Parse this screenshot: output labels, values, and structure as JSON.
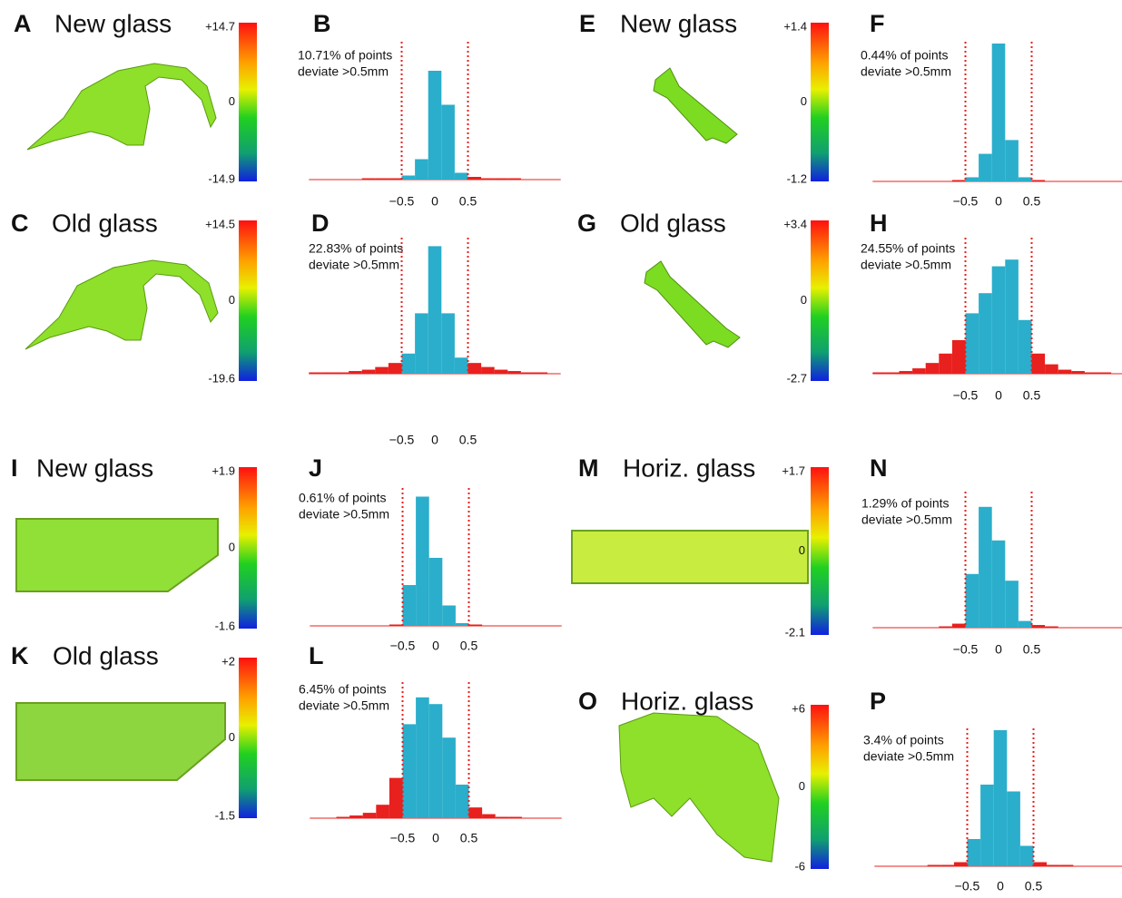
{
  "image_panels": [
    {
      "letter": "A",
      "title": "New glass",
      "scale": [
        "+14.7",
        "0",
        "-14.9"
      ]
    },
    {
      "letter": "C",
      "title": "Old glass",
      "scale": [
        "+14.5",
        "0",
        "-19.6"
      ]
    },
    {
      "letter": "E",
      "title": "New glass",
      "scale": [
        "+1.4",
        "0",
        "-1.2"
      ]
    },
    {
      "letter": "G",
      "title": "Old glass",
      "scale": [
        "+3.4",
        "0",
        "-2.7"
      ]
    },
    {
      "letter": "I",
      "title": "New glass",
      "scale": [
        "+1.9",
        "0",
        "-1.6"
      ]
    },
    {
      "letter": "K",
      "title": "Old glass",
      "scale": [
        "+2",
        "0",
        "-1.5"
      ]
    },
    {
      "letter": "M",
      "title": "Horiz. glass",
      "scale": [
        "+1.7",
        "0",
        "-2.1"
      ]
    },
    {
      "letter": "O",
      "title": "Horiz. glass",
      "scale": [
        "+6",
        "0",
        "-6"
      ]
    }
  ],
  "chart_data": [
    {
      "type": "histogram",
      "title": "B",
      "annotation": [
        "10.71% of points",
        "deviate >0.5mm"
      ],
      "color": "#2aaecb",
      "outlier_color": "#e8201e",
      "bins": [
        -1.9,
        -1.7,
        -1.5,
        -1.3,
        -1.1,
        -0.9,
        -0.7,
        -0.5,
        -0.3,
        -0.1,
        0.1,
        0.3,
        0.5,
        0.7,
        0.9,
        1.1,
        1.3,
        1.5,
        1.7,
        1.9
      ],
      "values": [
        0,
        0,
        0,
        0,
        1,
        1,
        1,
        3,
        15,
        80,
        55,
        5,
        2,
        1,
        1,
        1,
        0,
        0,
        0
      ],
      "xlim": [
        -1.9,
        1.9
      ],
      "ylim": [
        0,
        100
      ],
      "xticks": [
        {
          "value": -0.5,
          "label": "−0.5"
        },
        0,
        0.5
      ]
    },
    {
      "type": "histogram",
      "title": "D",
      "annotation": [
        "22.83% of points",
        "deviate >0.5mm"
      ],
      "color": "#2aaecb",
      "outlier_color": "#e8201e",
      "bins": [
        -1.9,
        -1.7,
        -1.5,
        -1.3,
        -1.1,
        -0.9,
        -0.7,
        -0.5,
        -0.3,
        -0.1,
        0.1,
        0.3,
        0.5,
        0.7,
        0.9,
        1.1,
        1.3,
        1.5,
        1.7,
        1.9
      ],
      "values": [
        1,
        1,
        1,
        2,
        3,
        5,
        8,
        15,
        45,
        95,
        45,
        12,
        8,
        5,
        3,
        2,
        1,
        1,
        0
      ],
      "xlim": [
        -1.9,
        1.9
      ],
      "ylim": [
        0,
        100
      ],
      "xticks": [
        {
          "value": -0.5,
          "label": "−0.5"
        },
        0,
        0.5
      ]
    },
    {
      "type": "histogram",
      "title": "F",
      "annotation": [
        "0.44% of points",
        "deviate >0.5mm"
      ],
      "color": "#2aaecb",
      "outlier_color": "#e8201e",
      "bins": [
        -1.9,
        -1.7,
        -1.5,
        -1.3,
        -1.1,
        -0.9,
        -0.7,
        -0.5,
        -0.3,
        -0.1,
        0.1,
        0.3,
        0.5,
        0.7,
        0.9,
        1.1,
        1.3,
        1.5,
        1.7,
        1.9
      ],
      "values": [
        0,
        0,
        0,
        0,
        0,
        0,
        1,
        3,
        20,
        100,
        30,
        3,
        1,
        0,
        0,
        0,
        0,
        0,
        0
      ],
      "xlim": [
        -1.9,
        1.9
      ],
      "ylim": [
        0,
        100
      ],
      "xticks": [
        {
          "value": -0.5,
          "label": "−0.5"
        },
        0,
        0.5
      ]
    },
    {
      "type": "histogram",
      "title": "H",
      "annotation": [
        "24.55% of points",
        "deviate >0.5mm"
      ],
      "color": "#2aaecb",
      "outlier_color": "#e8201e",
      "bins": [
        -1.9,
        -1.7,
        -1.5,
        -1.3,
        -1.1,
        -0.9,
        -0.7,
        -0.5,
        -0.3,
        -0.1,
        0.1,
        0.3,
        0.5,
        0.7,
        0.9,
        1.1,
        1.3,
        1.5,
        1.7,
        1.9
      ],
      "values": [
        1,
        1,
        2,
        4,
        8,
        15,
        25,
        45,
        60,
        80,
        85,
        40,
        15,
        7,
        3,
        2,
        1,
        1,
        0
      ],
      "xlim": [
        -1.9,
        1.9
      ],
      "ylim": [
        0,
        100
      ],
      "xticks": [
        {
          "value": -0.5,
          "label": "−0.5"
        },
        0,
        0.5
      ]
    },
    {
      "type": "histogram",
      "title": "J",
      "annotation": [
        "0.61% of points",
        "deviate >0.5mm"
      ],
      "color": "#2aaecb",
      "outlier_color": "#e8201e",
      "bins": [
        -1.9,
        -1.7,
        -1.5,
        -1.3,
        -1.1,
        -0.9,
        -0.7,
        -0.5,
        -0.3,
        -0.1,
        0.1,
        0.3,
        0.5,
        0.7,
        0.9,
        1.1,
        1.3,
        1.5,
        1.7,
        1.9
      ],
      "values": [
        0,
        0,
        0,
        0,
        0,
        0,
        1,
        30,
        95,
        50,
        15,
        2,
        1,
        0,
        0,
        0,
        0,
        0,
        0
      ],
      "xlim": [
        -1.9,
        1.9
      ],
      "ylim": [
        0,
        100
      ],
      "xticks": [
        {
          "value": -0.5,
          "label": "−0.5"
        },
        0,
        0.5
      ]
    },
    {
      "type": "histogram",
      "title": "L",
      "annotation": [
        "6.45% of points",
        "deviate >0.5mm"
      ],
      "color": "#2aaecb",
      "outlier_color": "#e8201e",
      "bins": [
        -1.9,
        -1.7,
        -1.5,
        -1.3,
        -1.1,
        -0.9,
        -0.7,
        -0.5,
        -0.3,
        -0.1,
        0.1,
        0.3,
        0.5,
        0.7,
        0.9,
        1.1,
        1.3,
        1.5,
        1.7,
        1.9
      ],
      "values": [
        0,
        0,
        1,
        2,
        4,
        10,
        30,
        70,
        90,
        85,
        60,
        25,
        8,
        3,
        1,
        1,
        0,
        0,
        0
      ],
      "xlim": [
        -1.9,
        1.9
      ],
      "ylim": [
        0,
        100
      ],
      "xticks": [
        {
          "value": -0.5,
          "label": "−0.5"
        },
        0,
        0.5
      ]
    },
    {
      "type": "histogram",
      "title": "N",
      "annotation": [
        "1.29% of points",
        "deviate >0.5mm"
      ],
      "color": "#2aaecb",
      "outlier_color": "#e8201e",
      "bins": [
        -1.9,
        -1.7,
        -1.5,
        -1.3,
        -1.1,
        -0.9,
        -0.7,
        -0.5,
        -0.3,
        -0.1,
        0.1,
        0.3,
        0.5,
        0.7,
        0.9,
        1.1,
        1.3,
        1.5,
        1.7,
        1.9
      ],
      "values": [
        0,
        0,
        0,
        0,
        0,
        1,
        3,
        40,
        90,
        65,
        35,
        5,
        2,
        1,
        0,
        0,
        0,
        0,
        0
      ],
      "xlim": [
        -1.9,
        1.9
      ],
      "ylim": [
        0,
        100
      ],
      "xticks": [
        {
          "value": -0.5,
          "label": "−0.5"
        },
        0,
        0.5
      ]
    },
    {
      "type": "histogram",
      "title": "P",
      "annotation": [
        "3.4% of points",
        "deviate >0.5mm"
      ],
      "color": "#2aaecb",
      "outlier_color": "#e8201e",
      "bins": [
        -1.9,
        -1.7,
        -1.5,
        -1.3,
        -1.1,
        -0.9,
        -0.7,
        -0.5,
        -0.3,
        -0.1,
        0.1,
        0.3,
        0.5,
        0.7,
        0.9,
        1.1,
        1.3,
        1.5,
        1.7,
        1.9
      ],
      "values": [
        0,
        0,
        0,
        0,
        1,
        1,
        3,
        20,
        60,
        100,
        55,
        15,
        3,
        1,
        1,
        0,
        0,
        0,
        0
      ],
      "xlim": [
        -1.9,
        1.9
      ],
      "ylim": [
        0,
        100
      ],
      "xticks": [
        {
          "value": -0.5,
          "label": "−0.5"
        },
        0,
        0.5
      ]
    }
  ]
}
